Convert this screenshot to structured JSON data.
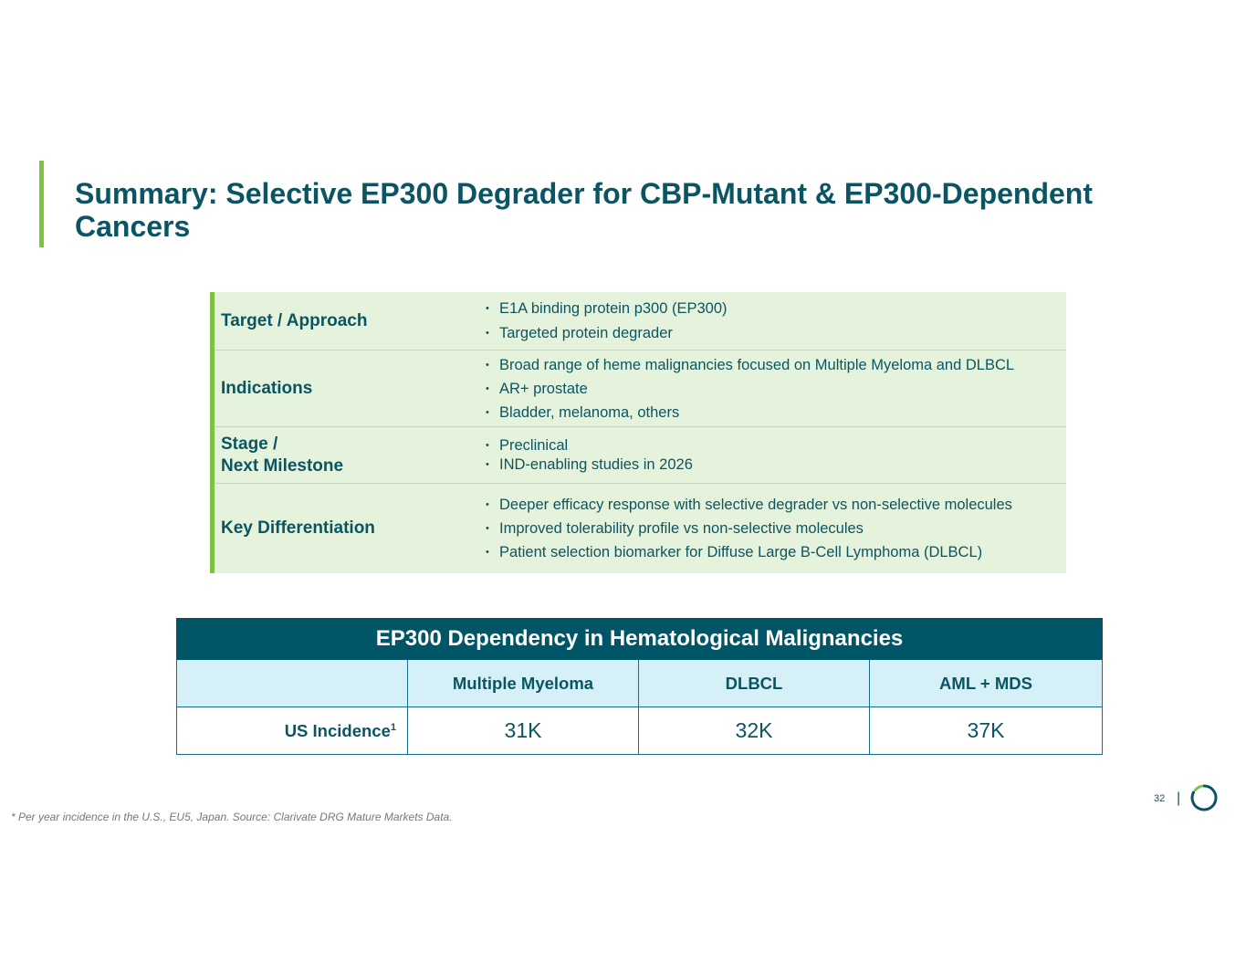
{
  "title_lines": [
    "Summary: Selective EP300 Degrader for CBP-Mutant & EP300-Dependent",
    "Cancers"
  ],
  "summary": {
    "rows": [
      {
        "label_lines": [
          "Target / Approach"
        ],
        "items": [
          "E1A binding protein p300 (EP300)",
          "Targeted protein degrader"
        ]
      },
      {
        "label_lines": [
          "Indications"
        ],
        "items": [
          "Broad range of heme malignancies focused on Multiple Myeloma and DLBCL",
          "AR+ prostate",
          "Bladder, melanoma, others"
        ]
      },
      {
        "label_lines": [
          "Stage /",
          "Next Milestone"
        ],
        "items": [
          "Preclinical",
          "IND-enabling studies in 2026"
        ]
      },
      {
        "label_lines": [
          "Key Differentiation"
        ],
        "items": [
          "Deeper efficacy response with selective degrader vs non-selective molecules",
          "Improved tolerability profile vs non-selective molecules",
          "Patient selection biomarker for Diffuse Large B-Cell Lymphoma (DLBCL)"
        ]
      }
    ]
  },
  "dependency_table": {
    "title": "EP300 Dependency in Hematological Malignancies",
    "columns": [
      "Multiple Myeloma",
      "DLBCL",
      "AML + MDS"
    ],
    "row_label": "US Incidence",
    "row_label_sup": "1",
    "values": [
      "31K",
      "32K",
      "37K"
    ]
  },
  "footer": {
    "page_number": "32",
    "separator": "|",
    "footnote": "* Per year incidence in the U.S., EU5, Japan. Source: Clarivate DRG Mature Markets Data."
  },
  "colors": {
    "primary": "#0b5563",
    "accent_green": "#7dc243",
    "summary_bg": "#e6f3dc",
    "header_bg": "#005566",
    "column_bg": "#d6f0f7"
  }
}
